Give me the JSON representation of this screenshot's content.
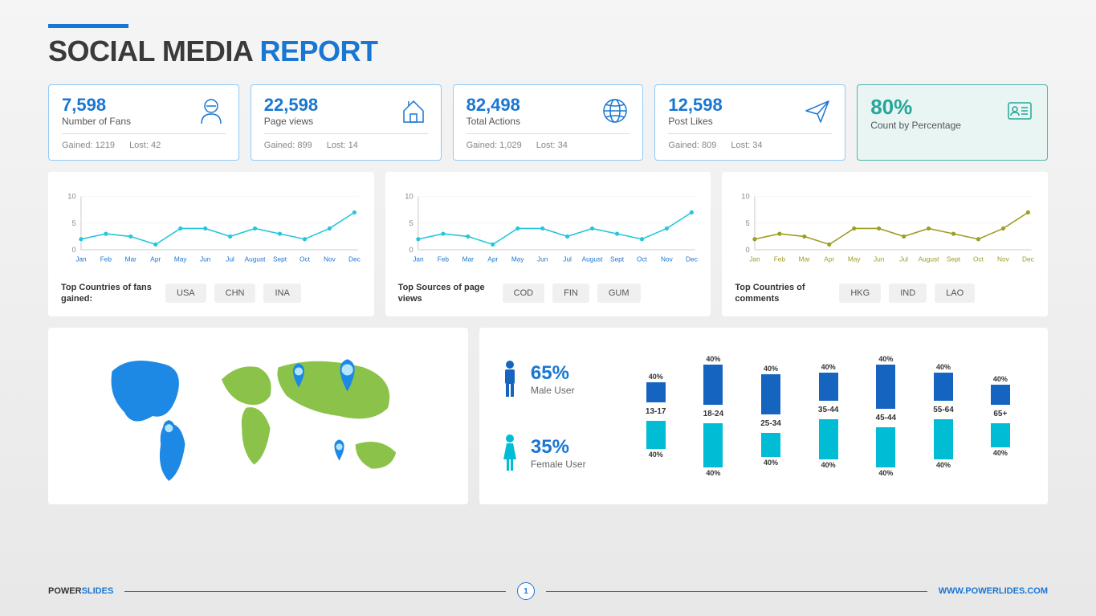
{
  "title": {
    "part1": "SOCIAL MEDIA ",
    "part2": "REPORT"
  },
  "cards": [
    {
      "value": "7,598",
      "label": "Number of Fans",
      "gained": "Gained: 1219",
      "lost": "Lost: 42",
      "icon": "user"
    },
    {
      "value": "22,598",
      "label": "Page views",
      "gained": "Gained: 899",
      "lost": "Lost: 14",
      "icon": "home"
    },
    {
      "value": "82,498",
      "label": "Total Actions",
      "gained": "Gained: 1,029",
      "lost": "Lost: 34",
      "icon": "globe"
    },
    {
      "value": "12,598",
      "label": "Post Likes",
      "gained": "Gained: 809",
      "lost": "Lost: 34",
      "icon": "plane"
    }
  ],
  "pctCard": {
    "value": "80%",
    "label": "Count by Percentage",
    "icon": "id"
  },
  "charts": [
    {
      "label": "Top Countries of fans gained:",
      "tags": [
        "USA",
        "CHN",
        "INA"
      ],
      "color": "#26c6da",
      "tickColor": "#1976d2"
    },
    {
      "label": "Top Sources of page views",
      "tags": [
        "COD",
        "FIN",
        "GUM"
      ],
      "color": "#26c6da",
      "tickColor": "#1976d2"
    },
    {
      "label": "Top Countries of comments",
      "tags": [
        "HKG",
        "IND",
        "LAO"
      ],
      "color": "#9e9d24",
      "tickColor": "#9e9d24"
    }
  ],
  "chartData": {
    "months": [
      "Jan",
      "Feb",
      "Mar",
      "Apr",
      "May",
      "Jun",
      "Jul",
      "August",
      "Sept",
      "Oct",
      "Nov",
      "Dec"
    ],
    "values": [
      2,
      3,
      2.5,
      1,
      4,
      4,
      2.5,
      4,
      3,
      2,
      4,
      7
    ],
    "ylim": [
      0,
      10
    ],
    "yticks": [
      0,
      5,
      10
    ]
  },
  "demographics": {
    "male": {
      "pct": "65%",
      "label": "Male User",
      "color": "#1565c0"
    },
    "female": {
      "pct": "35%",
      "label": "Female User",
      "color": "#00bcd4"
    },
    "ages": [
      "13-17",
      "18-24",
      "25-34",
      "35-44",
      "45-44",
      "55-64",
      "65+"
    ],
    "maleVals": [
      25,
      50,
      50,
      35,
      55,
      35,
      25
    ],
    "femaleVals": [
      35,
      55,
      30,
      50,
      50,
      50,
      30
    ],
    "barLabel": "40%"
  },
  "map": {
    "landColor": "#8bc34a",
    "oceanColor": "#ffffff",
    "highlightColor": "#1e88e5",
    "pinColor": "#1e88e5",
    "pinFill": "#4fc3f7"
  },
  "footer": {
    "brand1": "POWER",
    "brand2": "SLIDES",
    "page": "1",
    "url": "WWW.POWERLIDES.COM"
  }
}
